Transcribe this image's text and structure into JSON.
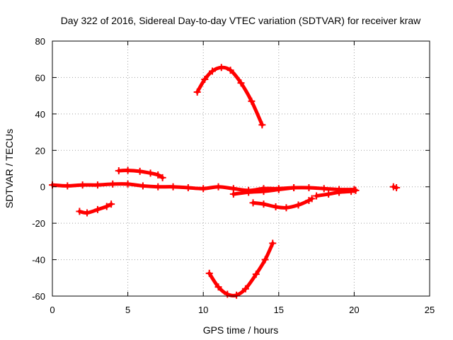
{
  "chart_data": {
    "type": "scatter",
    "title": "Day 322 of 2016, Sidereal Day-to-day VTEC variation (SDTVAR) for receiver kraw",
    "xlabel": "GPS time / hours",
    "ylabel": "SDTVAR / TECUs",
    "xlim": [
      0,
      25
    ],
    "ylim": [
      -60,
      80
    ],
    "xticks": [
      0,
      5,
      10,
      15,
      20,
      25
    ],
    "yticks": [
      -60,
      -40,
      -20,
      0,
      20,
      40,
      60,
      80
    ],
    "grid": true,
    "marker": "plus",
    "color": "#ff0000",
    "series": [
      {
        "name": "near-zero-main",
        "points": [
          [
            0,
            1
          ],
          [
            1,
            0.5
          ],
          [
            2,
            1
          ],
          [
            3,
            1
          ],
          [
            4,
            1.5
          ],
          [
            5,
            1.5
          ],
          [
            6,
            0.5
          ],
          [
            7,
            0
          ],
          [
            8,
            0
          ],
          [
            9,
            -0.5
          ],
          [
            10,
            -1
          ],
          [
            11,
            0
          ],
          [
            12,
            -1
          ],
          [
            13,
            -2
          ],
          [
            14,
            -1
          ],
          [
            15,
            -1
          ],
          [
            16,
            -0.5
          ],
          [
            17,
            -0.5
          ],
          [
            18,
            -1
          ],
          [
            19,
            -1.5
          ],
          [
            20,
            -1.5
          ]
        ]
      },
      {
        "name": "low-arc-early",
        "points": [
          [
            1.8,
            -13.5
          ],
          [
            2.3,
            -14.3
          ],
          [
            3,
            -12.5
          ],
          [
            3.6,
            -10.8
          ],
          [
            3.9,
            -9.5
          ]
        ]
      },
      {
        "name": "upper-segment-early",
        "points": [
          [
            4.4,
            8.8
          ],
          [
            5,
            9
          ],
          [
            5.8,
            8.5
          ],
          [
            6.5,
            7.5
          ],
          [
            7,
            6.5
          ],
          [
            7.3,
            5
          ]
        ]
      },
      {
        "name": "high-arc",
        "points": [
          [
            9.6,
            52
          ],
          [
            10.1,
            59
          ],
          [
            10.6,
            63.5
          ],
          [
            11.2,
            65.5
          ],
          [
            11.8,
            64
          ],
          [
            12.5,
            57
          ],
          [
            13.2,
            47
          ],
          [
            13.9,
            34
          ]
        ]
      },
      {
        "name": "low-arc-deep",
        "points": [
          [
            10.4,
            -47.5
          ],
          [
            11,
            -55
          ],
          [
            11.6,
            -59
          ],
          [
            12.2,
            -59.5
          ],
          [
            12.8,
            -56
          ],
          [
            13.5,
            -48
          ],
          [
            14.1,
            -40
          ],
          [
            14.6,
            -31
          ]
        ]
      },
      {
        "name": "mid-negative",
        "points": [
          [
            12,
            -4
          ],
          [
            13,
            -3
          ],
          [
            14,
            -2.5
          ],
          [
            15,
            -1.5
          ],
          [
            16,
            -0.5
          ]
        ]
      },
      {
        "name": "low-arc-mid",
        "points": [
          [
            13.3,
            -8.8
          ],
          [
            14,
            -9.5
          ],
          [
            14.8,
            -11
          ],
          [
            15.5,
            -11.5
          ],
          [
            16.3,
            -10
          ],
          [
            17,
            -7.5
          ],
          [
            17.2,
            -6.5
          ]
        ]
      },
      {
        "name": "recovery-branch",
        "points": [
          [
            17.5,
            -5
          ],
          [
            18.3,
            -4
          ],
          [
            19,
            -3
          ],
          [
            19.8,
            -2.5
          ],
          [
            20.1,
            -2
          ]
        ]
      },
      {
        "name": "isolated-point",
        "points": [
          [
            22.6,
            0
          ],
          [
            22.8,
            -0.5
          ]
        ]
      }
    ]
  }
}
